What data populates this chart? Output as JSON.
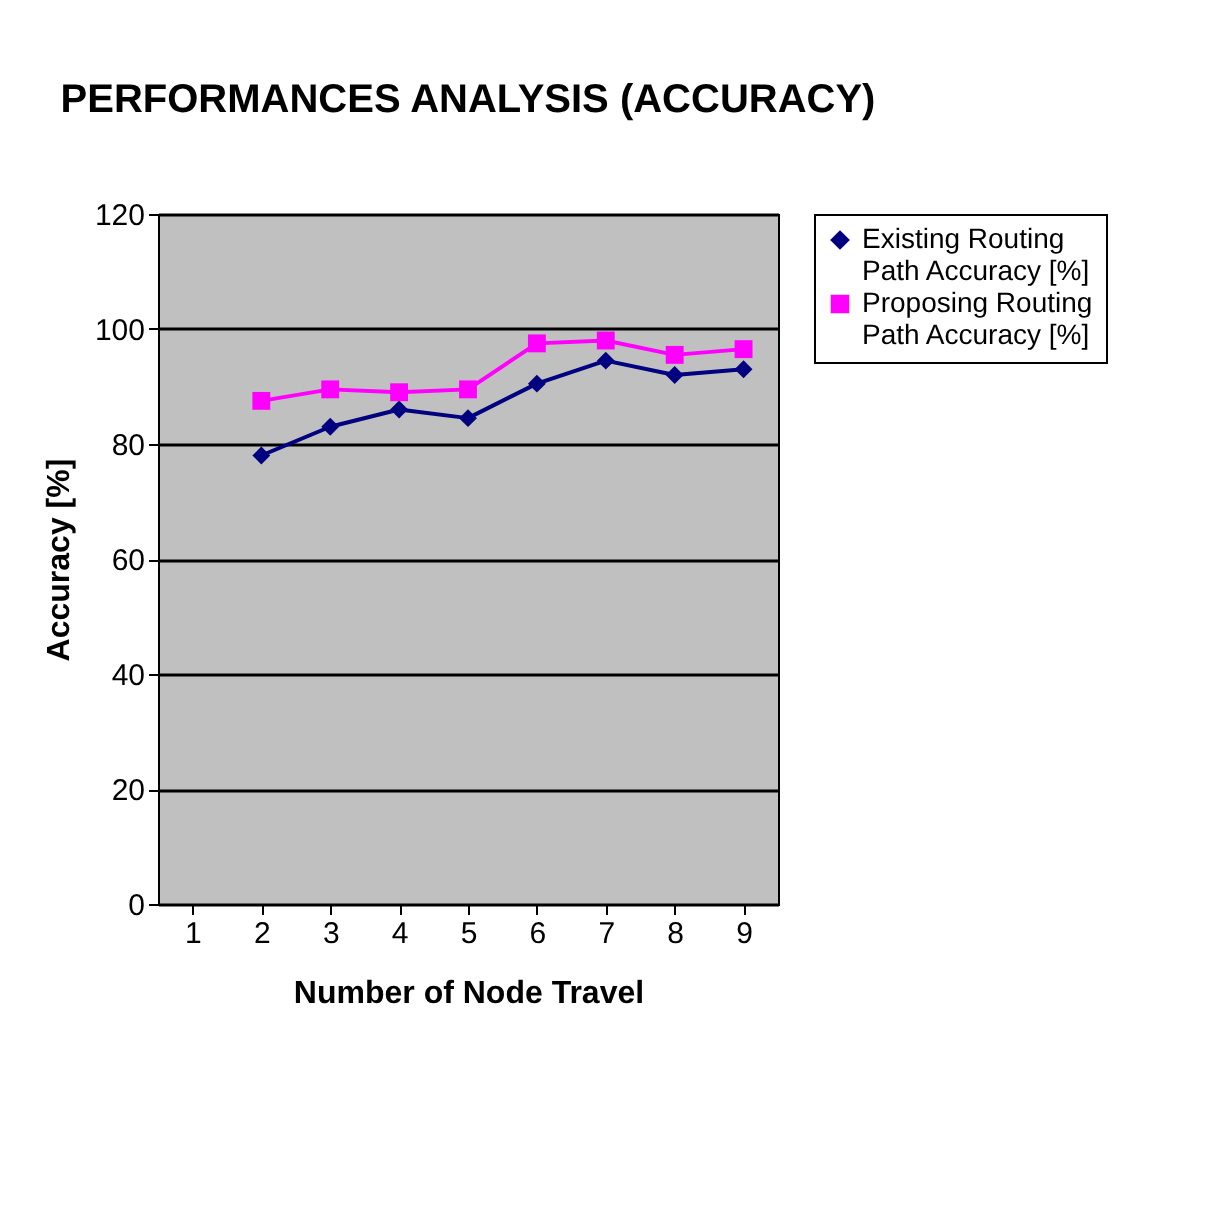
{
  "chart_data": {
    "type": "line",
    "title": "PERFORMANCES ANALYSIS (ACCURACY)",
    "xlabel": "Number of Node Travel",
    "ylabel": "Accuracy [%]",
    "categories": [
      "1",
      "2",
      "3",
      "4",
      "5",
      "6",
      "7",
      "8",
      "9"
    ],
    "series": [
      {
        "name": "Existing Routing Path Accuracy [%]",
        "color": "#000080",
        "marker": "diamond",
        "values": [
          null,
          78,
          83,
          86,
          84.5,
          90.5,
          94.5,
          92,
          93
        ]
      },
      {
        "name": "Proposing Routing Path Accuracy [%]",
        "color": "#ff00ff",
        "marker": "square",
        "values": [
          null,
          87.5,
          89.5,
          89,
          89.5,
          97.5,
          98,
          95.5,
          96.5
        ]
      }
    ],
    "ylim": [
      0,
      120
    ],
    "yticks": [
      0,
      20,
      40,
      60,
      80,
      100,
      120
    ],
    "grid": "y",
    "legend": "right"
  }
}
